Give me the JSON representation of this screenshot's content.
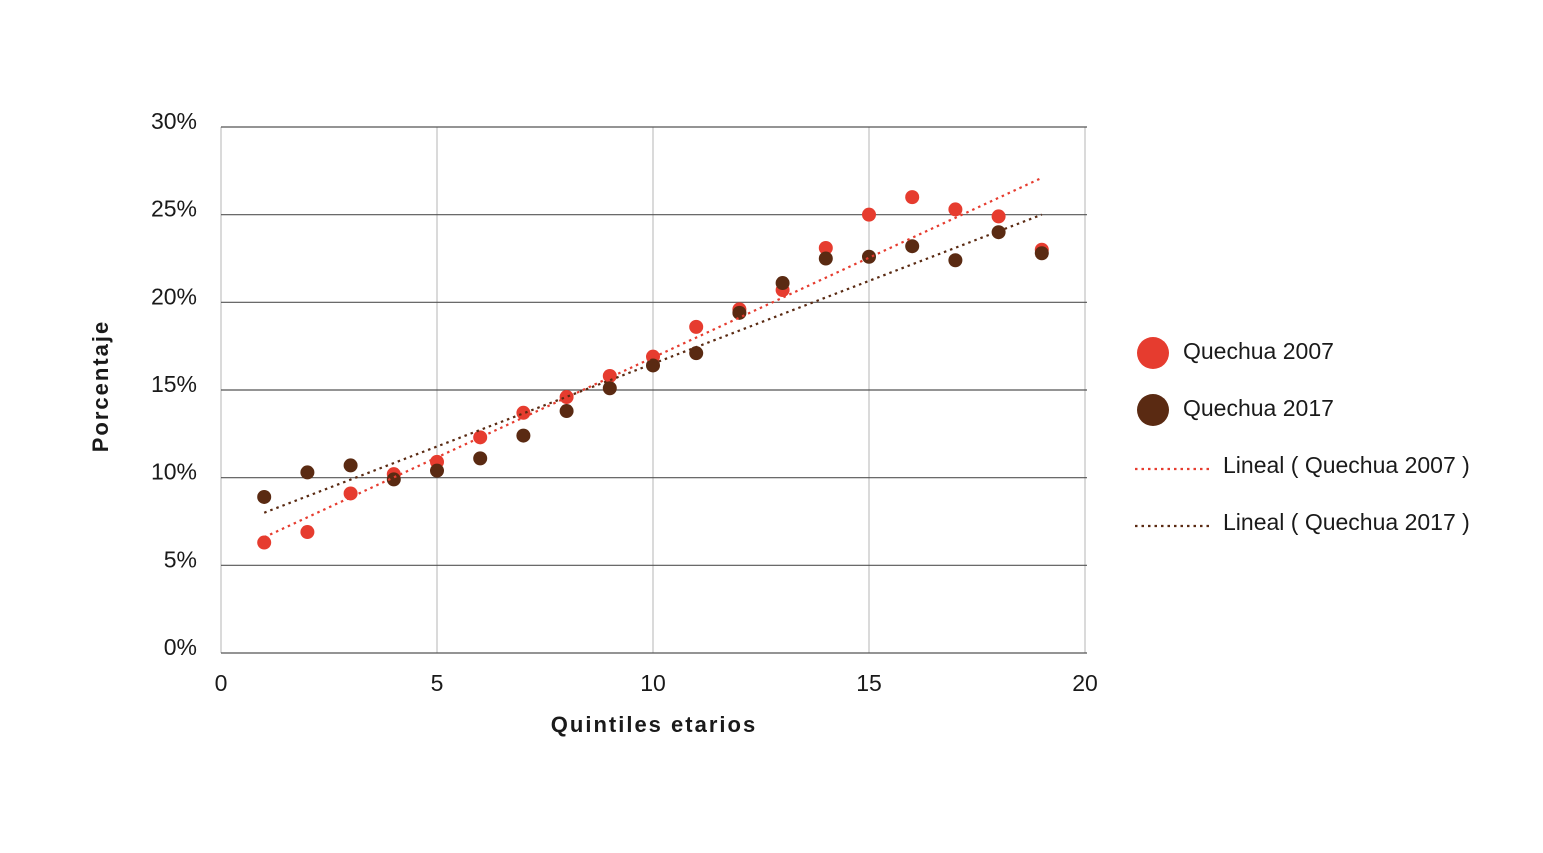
{
  "chart_data": {
    "type": "scatter",
    "x_label": "Quintiles etarios",
    "y_label": "Porcentaje",
    "xlim": [
      0,
      20
    ],
    "ylim": [
      0,
      30
    ],
    "xticks": [
      0,
      5,
      10,
      15,
      20
    ],
    "yticks": [
      {
        "value": 0,
        "label": "0%"
      },
      {
        "value": 5,
        "label": "5%"
      },
      {
        "value": 10,
        "label": "10%"
      },
      {
        "value": 15,
        "label": "15%"
      },
      {
        "value": 20,
        "label": "20%"
      },
      {
        "value": 25,
        "label": "25%"
      },
      {
        "value": 30,
        "label": "30%"
      }
    ],
    "grid": true,
    "legend": "right",
    "series": [
      {
        "name": "Quechua 2007",
        "color": "#e63c2f",
        "type": "scatter",
        "x": [
          1,
          2,
          3,
          4,
          5,
          6,
          7,
          8,
          9,
          10,
          11,
          12,
          13,
          14,
          15,
          16,
          17,
          18,
          19
        ],
        "values": [
          6.3,
          6.9,
          9.1,
          10.2,
          10.9,
          12.3,
          13.7,
          14.6,
          15.8,
          16.9,
          18.6,
          19.6,
          20.7,
          23.1,
          25.0,
          26.0,
          25.3,
          24.9,
          23.0
        ]
      },
      {
        "name": "Quechua 2017",
        "color": "#5a2a12",
        "type": "scatter",
        "x": [
          1,
          2,
          3,
          4,
          5,
          6,
          7,
          8,
          9,
          10,
          11,
          12,
          13,
          14,
          15,
          16,
          17,
          18,
          19
        ],
        "values": [
          8.9,
          10.3,
          10.7,
          9.9,
          10.4,
          11.1,
          12.4,
          13.8,
          15.1,
          16.4,
          17.1,
          19.4,
          21.1,
          22.5,
          22.6,
          23.2,
          22.4,
          24.0,
          22.8
        ]
      },
      {
        "name": "Lineal ( Quechua 2007 )",
        "color": "#e63c2f",
        "type": "line",
        "dash": "dotted",
        "x": [
          1,
          19
        ],
        "values": [
          6.6,
          27.1
        ]
      },
      {
        "name": "Lineal ( Quechua 2017 )",
        "color": "#5a2a12",
        "type": "line",
        "dash": "dotted",
        "x": [
          1,
          19
        ],
        "values": [
          8.0,
          25.0
        ]
      }
    ]
  }
}
